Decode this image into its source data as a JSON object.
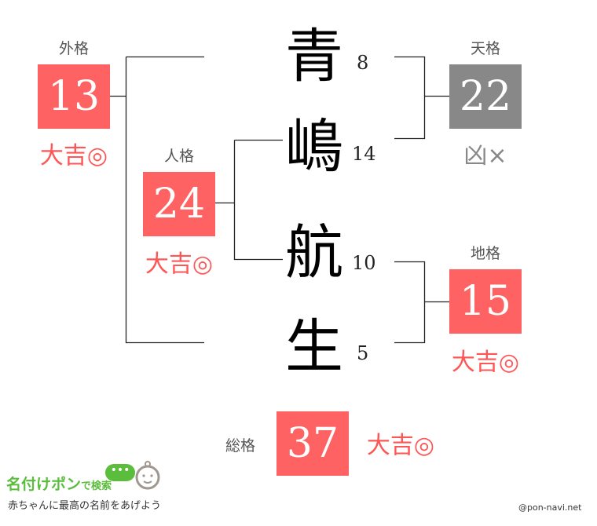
{
  "name_chars": [
    {
      "char": "青",
      "strokes": "8"
    },
    {
      "char": "嶋",
      "strokes": "14"
    },
    {
      "char": "航",
      "strokes": "10"
    },
    {
      "char": "生",
      "strokes": "5"
    }
  ],
  "gaikaku": {
    "label": "外格",
    "value": "13",
    "fortune": "大吉◎",
    "color": "#ff6262"
  },
  "jinkaku": {
    "label": "人格",
    "value": "24",
    "fortune": "大吉◎",
    "color": "#ff6262"
  },
  "tenkaku": {
    "label": "天格",
    "value": "22",
    "fortune": "凶×",
    "color": "#888888"
  },
  "chikaku": {
    "label": "地格",
    "value": "15",
    "fortune": "大吉◎",
    "color": "#ff6262"
  },
  "soukaku": {
    "label": "総格",
    "value": "37",
    "fortune": "大吉◎",
    "color": "#ff6262"
  },
  "logo": {
    "title": "名付けポン",
    "title_suffix": "で検索",
    "tagline": "赤ちゃんに最高の名前をあげよう"
  },
  "credit": "@pon-navi.net"
}
